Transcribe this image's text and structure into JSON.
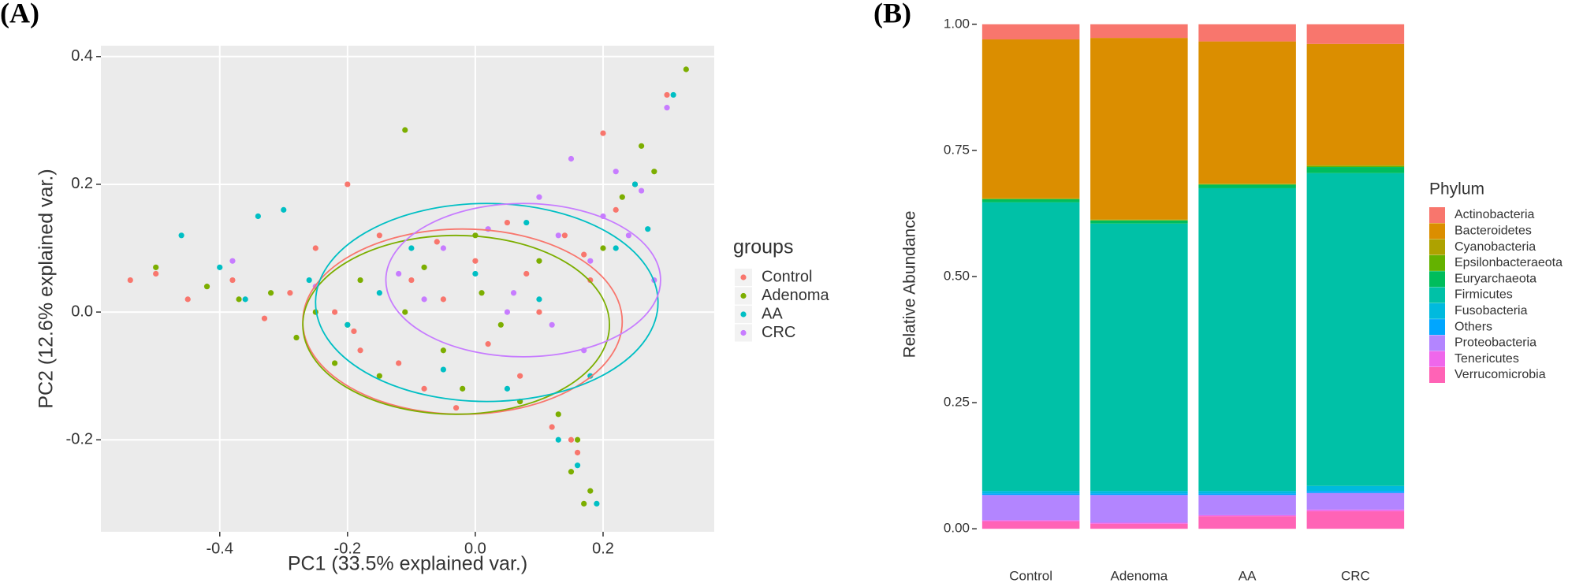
{
  "chart_data": [
    {
      "type": "scatter",
      "label": "(A)",
      "x_label": "PC1 (33.5% explained var.)",
      "y_label": "PC2 (12.6% explained var.)",
      "legend_title": "groups",
      "xlim": [
        -0.586,
        0.374
      ],
      "ylim": [
        -0.344,
        0.417
      ],
      "xticks": [
        -0.4,
        -0.2,
        {
          "value": 0,
          "label": "0.0"
        },
        0.2
      ],
      "yticks": [
        -0.2,
        {
          "value": 0,
          "label": "0.0"
        },
        0.2,
        0.4
      ],
      "grid": true,
      "series": [
        {
          "name": "Control",
          "color": "#F8766D",
          "x": [
            -0.54,
            -0.5,
            -0.45,
            -0.38,
            -0.33,
            -0.29,
            -0.25,
            -0.22,
            -0.2,
            -0.18,
            -0.15,
            -0.12,
            -0.1,
            -0.08,
            -0.05,
            -0.03,
            0,
            0.02,
            0.05,
            0.07,
            0.1,
            0.12,
            0.14,
            0.16,
            0.18,
            0.2,
            0.22,
            0.25,
            0.3,
            -0.19,
            -0.06,
            0.08,
            0.15,
            0.17
          ],
          "values": [
            0.05,
            0.06,
            0.02,
            0.05,
            -0.01,
            0.03,
            0.1,
            0.0,
            0.2,
            -0.06,
            0.12,
            -0.08,
            0.05,
            -0.12,
            0.02,
            -0.15,
            0.08,
            -0.05,
            0.14,
            -0.1,
            0.0,
            -0.18,
            0.12,
            -0.22,
            0.05,
            0.28,
            0.16,
            0.2,
            0.34,
            -0.03,
            0.11,
            0.06,
            -0.2,
            0.09
          ],
          "ellipse": {
            "cx": -0.02,
            "cy": -0.015,
            "rx": 0.25,
            "ry": 0.145
          }
        },
        {
          "name": "Adenoma",
          "color": "#7CAE00",
          "x": [
            -0.5,
            -0.42,
            -0.37,
            -0.32,
            -0.28,
            -0.25,
            -0.22,
            -0.18,
            -0.15,
            -0.11,
            -0.08,
            -0.05,
            -0.02,
            0.01,
            0.04,
            0.07,
            0.1,
            0.13,
            0.15,
            0.17,
            0.18,
            0.2,
            0.23,
            0.26,
            0.28,
            0.33,
            -0.11,
            0.16,
            -0.2,
            0.0
          ],
          "values": [
            0.07,
            0.04,
            0.02,
            0.03,
            -0.04,
            0.0,
            -0.08,
            0.05,
            -0.1,
            0.285,
            0.07,
            -0.06,
            -0.12,
            0.03,
            -0.02,
            -0.14,
            0.08,
            -0.16,
            -0.25,
            -0.3,
            -0.28,
            0.1,
            0.18,
            0.26,
            0.22,
            0.38,
            0.0,
            -0.2,
            -0.02,
            0.12
          ],
          "ellipse": {
            "cx": -0.03,
            "cy": -0.02,
            "rx": 0.24,
            "ry": 0.14
          }
        },
        {
          "name": "AA",
          "color": "#00BFC4",
          "x": [
            -0.46,
            -0.4,
            -0.34,
            -0.3,
            -0.26,
            -0.2,
            -0.15,
            -0.1,
            -0.05,
            0,
            0.05,
            0.1,
            0.13,
            0.16,
            0.19,
            0.22,
            0.25,
            0.27,
            0.31,
            -0.36,
            0.08,
            0.18
          ],
          "values": [
            0.12,
            0.07,
            0.15,
            0.16,
            0.05,
            -0.02,
            0.03,
            0.1,
            -0.09,
            0.06,
            -0.12,
            0.02,
            -0.2,
            -0.24,
            -0.3,
            0.1,
            0.2,
            0.13,
            0.34,
            0.02,
            0.14,
            -0.1
          ],
          "ellipse": {
            "cx": 0.018,
            "cy": 0.015,
            "rx": 0.268,
            "ry": 0.155
          }
        },
        {
          "name": "CRC",
          "color": "#C77CFF",
          "x": [
            -0.38,
            -0.25,
            -0.12,
            -0.05,
            0.02,
            0.06,
            0.1,
            0.13,
            0.15,
            0.18,
            0.2,
            0.22,
            0.24,
            0.26,
            0.28,
            0.3,
            0.12,
            0.05,
            -0.08,
            0.17
          ],
          "values": [
            0.08,
            0.04,
            0.06,
            0.1,
            0.13,
            0.03,
            0.18,
            0.12,
            0.24,
            0.08,
            0.15,
            0.22,
            0.12,
            0.19,
            0.05,
            0.32,
            -0.02,
            0.0,
            0.02,
            -0.06
          ],
          "ellipse": {
            "cx": 0.075,
            "cy": 0.05,
            "rx": 0.215,
            "ry": 0.12
          }
        }
      ]
    },
    {
      "type": "bar",
      "label": "(B)",
      "stacked": true,
      "y_label": "Relative Abundance",
      "legend_title": "Phylum",
      "categories": [
        "Control",
        "Adenoma",
        "AA",
        "CRC"
      ],
      "ylim": [
        -0.045,
        1.045
      ],
      "yticks": [
        {
          "value": 0,
          "label": "0.00"
        },
        0.25,
        {
          "value": 0.5,
          "label": "0.50"
        },
        0.75,
        {
          "value": 1,
          "label": "1.00"
        }
      ],
      "series": [
        {
          "name": "Actinobacteria",
          "color": "#F8766D",
          "values": [
            0.03,
            0.027,
            0.034,
            0.039
          ]
        },
        {
          "name": "Bacteroidetes",
          "color": "#DB8E00",
          "values": [
            0.315,
            0.36,
            0.282,
            0.24
          ]
        },
        {
          "name": "Cyanobacteria",
          "color": "#AEA200",
          "values": [
            0.001,
            0.001,
            0.001,
            0.002
          ]
        },
        {
          "name": "Epsilonbacteraeota",
          "color": "#64B200",
          "values": [
            0.001,
            0.001,
            0.001,
            0.002
          ]
        },
        {
          "name": "Euryarchaeota",
          "color": "#00BD5C",
          "values": [
            0.006,
            0.006,
            0.007,
            0.012
          ]
        },
        {
          "name": "Firmicutes",
          "color": "#00C1A7",
          "values": [
            0.572,
            0.53,
            0.6,
            0.62
          ]
        },
        {
          "name": "Fusobacteria",
          "color": "#00BADE",
          "values": [
            0.005,
            0.005,
            0.005,
            0.01
          ]
        },
        {
          "name": "Others",
          "color": "#00A6FF",
          "values": [
            0.003,
            0.003,
            0.003,
            0.004
          ]
        },
        {
          "name": "Proteobacteria",
          "color": "#B385FF",
          "values": [
            0.05,
            0.055,
            0.04,
            0.033
          ]
        },
        {
          "name": "Tenericutes",
          "color": "#EF67EB",
          "values": [
            0.002,
            0.002,
            0.002,
            0.003
          ]
        },
        {
          "name": "Verrucomicrobia",
          "color": "#FF63B6",
          "values": [
            0.015,
            0.01,
            0.025,
            0.035
          ]
        }
      ]
    }
  ]
}
